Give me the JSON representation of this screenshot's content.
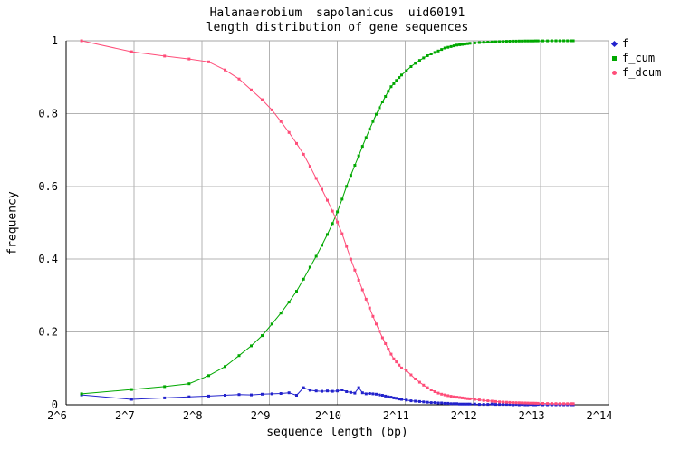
{
  "chart_data": {
    "type": "line",
    "title_line1": "Halanaerobium  sapolanicus  uid60191",
    "title_line2": "length distribution of gene sequences",
    "xlabel": "sequence length (bp)",
    "ylabel": "frequency",
    "x_scale": "log2",
    "xlim_log2": [
      6,
      14
    ],
    "ylim": [
      0,
      1
    ],
    "grid": true,
    "legend_position": "top-right-outside",
    "x_tick_exponents": [
      6,
      7,
      8,
      9,
      10,
      11,
      12,
      13,
      14
    ],
    "x_tick_labels": [
      "2^6",
      "2^7",
      "2^8",
      "2^9",
      "2^10",
      "2^11",
      "2^12",
      "2^13",
      "2^14"
    ],
    "y_tick_values": [
      0,
      0.2,
      0.4,
      0.6,
      0.8,
      1
    ],
    "y_tick_labels": [
      "0",
      "0.2",
      "0.4",
      "0.6",
      "0.8",
      "1"
    ],
    "colors": {
      "grid": "#b3b3b3",
      "axis": "#000000",
      "border_top_right": "#a6a6a6",
      "f": "#2222cc",
      "f_cum": "#00a800",
      "f_dcum": "#ff4d79"
    },
    "x_bp": [
      75,
      125,
      175,
      225,
      275,
      325,
      375,
      425,
      475,
      525,
      575,
      625,
      675,
      725,
      775,
      825,
      875,
      925,
      975,
      1025,
      1075,
      1125,
      1175,
      1225,
      1275,
      1325,
      1375,
      1425,
      1475,
      1525,
      1575,
      1625,
      1675,
      1725,
      1775,
      1825,
      1875,
      1925,
      1975,
      2075,
      2175,
      2275,
      2375,
      2475,
      2575,
      2675,
      2775,
      2875,
      2975,
      3075,
      3175,
      3275,
      3375,
      3475,
      3575,
      3675,
      3775,
      3875,
      3975,
      4175,
      4375,
      4575,
      4775,
      4975,
      5175,
      5375,
      5575,
      5775,
      5975,
      6175,
      6375,
      6575,
      6775,
      6975,
      7175,
      7375,
      7575,
      7775,
      7975,
      8375,
      8775,
      9175,
      9575,
      9975,
      10375,
      10775,
      11175,
      11425
    ],
    "series": [
      {
        "name": "f",
        "marker": "diamond",
        "values": [
          0.027,
          0.015,
          0.019,
          0.022,
          0.024,
          0.026,
          0.028,
          0.027,
          0.029,
          0.03,
          0.031,
          0.033,
          0.026,
          0.047,
          0.04,
          0.038,
          0.037,
          0.038,
          0.037,
          0.038,
          0.041,
          0.036,
          0.034,
          0.032,
          0.047,
          0.033,
          0.03,
          0.031,
          0.03,
          0.029,
          0.027,
          0.026,
          0.024,
          0.022,
          0.021,
          0.019,
          0.018,
          0.016,
          0.015,
          0.013,
          0.011,
          0.01,
          0.009,
          0.008,
          0.007,
          0.006,
          0.006,
          0.005,
          0.005,
          0.004,
          0.004,
          0.003,
          0.003,
          0.003,
          0.002,
          0.002,
          0.002,
          0.002,
          0.002,
          0.002,
          0.001,
          0.001,
          0.001,
          0.002,
          0.001,
          0.001,
          0.001,
          0.001,
          0.001,
          0.0,
          0.001,
          0.0,
          0.001,
          0.0,
          0.0,
          0.001,
          0.0,
          0.0,
          0.001,
          0.0,
          0.0,
          0.0,
          0.0,
          0.0,
          0.0,
          0.0,
          0.0,
          0.0
        ]
      },
      {
        "name": "f_cum",
        "marker": "square",
        "values": [
          0.03,
          0.042,
          0.05,
          0.058,
          0.08,
          0.105,
          0.135,
          0.162,
          0.19,
          0.222,
          0.252,
          0.282,
          0.312,
          0.345,
          0.378,
          0.408,
          0.438,
          0.468,
          0.498,
          0.53,
          0.565,
          0.6,
          0.63,
          0.658,
          0.684,
          0.71,
          0.734,
          0.757,
          0.778,
          0.798,
          0.816,
          0.832,
          0.847,
          0.861,
          0.874,
          0.882,
          0.891,
          0.899,
          0.906,
          0.918,
          0.929,
          0.938,
          0.946,
          0.953,
          0.959,
          0.964,
          0.968,
          0.972,
          0.976,
          0.98,
          0.982,
          0.984,
          0.986,
          0.988,
          0.989,
          0.99,
          0.991,
          0.992,
          0.993,
          0.994,
          0.995,
          0.9957,
          0.9963,
          0.9968,
          0.9973,
          0.9977,
          0.9981,
          0.9984,
          0.9987,
          0.9989,
          0.9991,
          0.9992,
          0.9993,
          0.9994,
          0.9995,
          0.9996,
          0.9996,
          0.9997,
          0.9997,
          0.9998,
          0.9998,
          0.9999,
          0.9999,
          0.9999,
          1.0,
          1.0,
          1.0,
          1.0
        ]
      },
      {
        "name": "f_dcum",
        "marker": "circle",
        "values": [
          1.0,
          0.97,
          0.958,
          0.95,
          0.942,
          0.92,
          0.895,
          0.865,
          0.838,
          0.81,
          0.778,
          0.748,
          0.718,
          0.688,
          0.655,
          0.622,
          0.592,
          0.562,
          0.532,
          0.502,
          0.47,
          0.435,
          0.4,
          0.37,
          0.342,
          0.316,
          0.29,
          0.266,
          0.243,
          0.222,
          0.202,
          0.184,
          0.168,
          0.153,
          0.139,
          0.126,
          0.118,
          0.109,
          0.101,
          0.094,
          0.082,
          0.071,
          0.062,
          0.054,
          0.047,
          0.041,
          0.036,
          0.032,
          0.029,
          0.027,
          0.025,
          0.0235,
          0.022,
          0.021,
          0.02,
          0.019,
          0.018,
          0.017,
          0.0165,
          0.015,
          0.0135,
          0.012,
          0.011,
          0.01,
          0.009,
          0.008,
          0.0075,
          0.007,
          0.0065,
          0.006,
          0.0058,
          0.0055,
          0.0052,
          0.005,
          0.0048,
          0.0046,
          0.0044,
          0.0042,
          0.004,
          0.0038,
          0.0036,
          0.0034,
          0.0032,
          0.003,
          0.003,
          0.003,
          0.003,
          0.003
        ]
      }
    ]
  }
}
